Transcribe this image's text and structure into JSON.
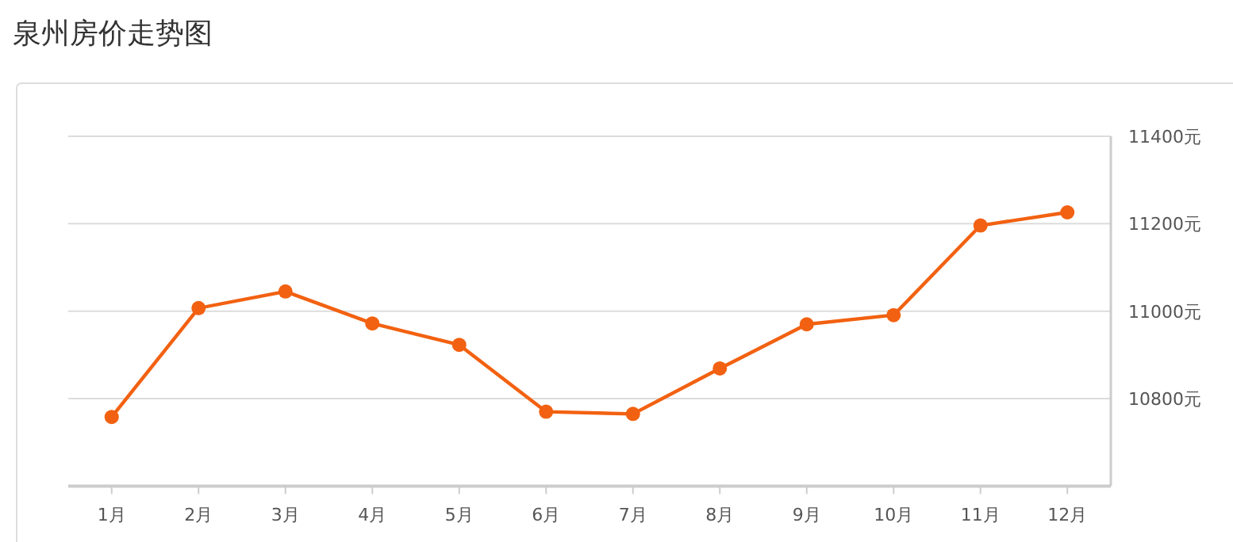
{
  "chart_data": {
    "type": "line",
    "title": "泉州房价走势图",
    "categories": [
      "1月",
      "2月",
      "3月",
      "4月",
      "5月",
      "6月",
      "7月",
      "8月",
      "9月",
      "10月",
      "11月",
      "12月"
    ],
    "series": [
      {
        "color": "#f26111",
        "values": [
          10758,
          11007,
          11045,
          10972,
          10923,
          10770,
          10765,
          10869,
          10970,
          10991,
          11196,
          11226
        ]
      }
    ],
    "ylim": [
      10600,
      11400
    ],
    "yticks": [
      {
        "value": 10800,
        "label": "10800元"
      },
      {
        "value": 11000,
        "label": "11000元"
      },
      {
        "value": 11200,
        "label": "11200元"
      },
      {
        "value": 11400,
        "label": "11400元"
      }
    ],
    "grid": "y",
    "marker": "circle",
    "line_style": "solid"
  }
}
